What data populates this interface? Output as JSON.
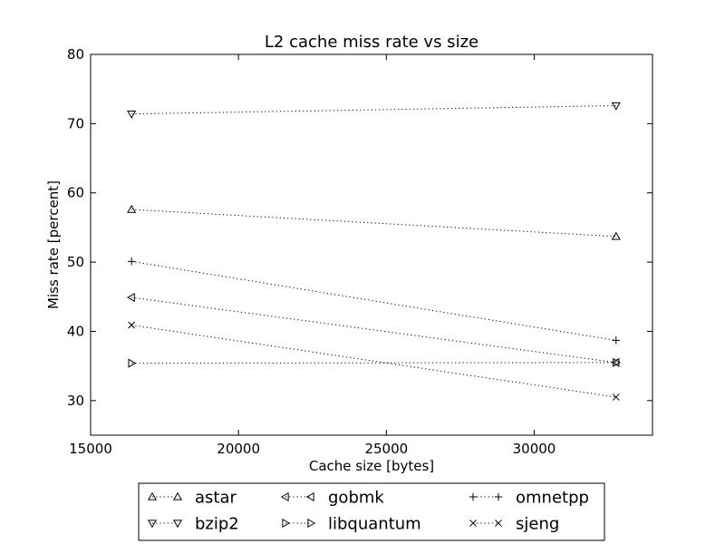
{
  "chart_data": {
    "type": "line",
    "title": "L2 cache miss rate vs size",
    "xlabel": "Cache size [bytes]",
    "ylabel": "Miss rate [percent]",
    "xlim": [
      15000,
      34000
    ],
    "ylim": [
      25,
      80
    ],
    "xticks": [
      15000,
      20000,
      25000,
      30000
    ],
    "yticks": [
      30,
      40,
      50,
      60,
      70,
      80
    ],
    "grid": false,
    "legend_position": "bottom-center",
    "x": [
      16384,
      32768
    ],
    "series": [
      {
        "name": "astar",
        "marker": "triangle-up",
        "values": [
          57.6,
          53.7
        ]
      },
      {
        "name": "bzip2",
        "marker": "triangle-down",
        "values": [
          71.4,
          72.6
        ]
      },
      {
        "name": "gobmk",
        "marker": "triangle-left",
        "values": [
          44.9,
          35.5
        ]
      },
      {
        "name": "libquantum",
        "marker": "triangle-right",
        "values": [
          35.4,
          35.5
        ]
      },
      {
        "name": "omnetpp",
        "marker": "plus",
        "values": [
          50.1,
          38.7
        ]
      },
      {
        "name": "sjeng",
        "marker": "x",
        "values": [
          40.9,
          30.5
        ]
      }
    ]
  }
}
